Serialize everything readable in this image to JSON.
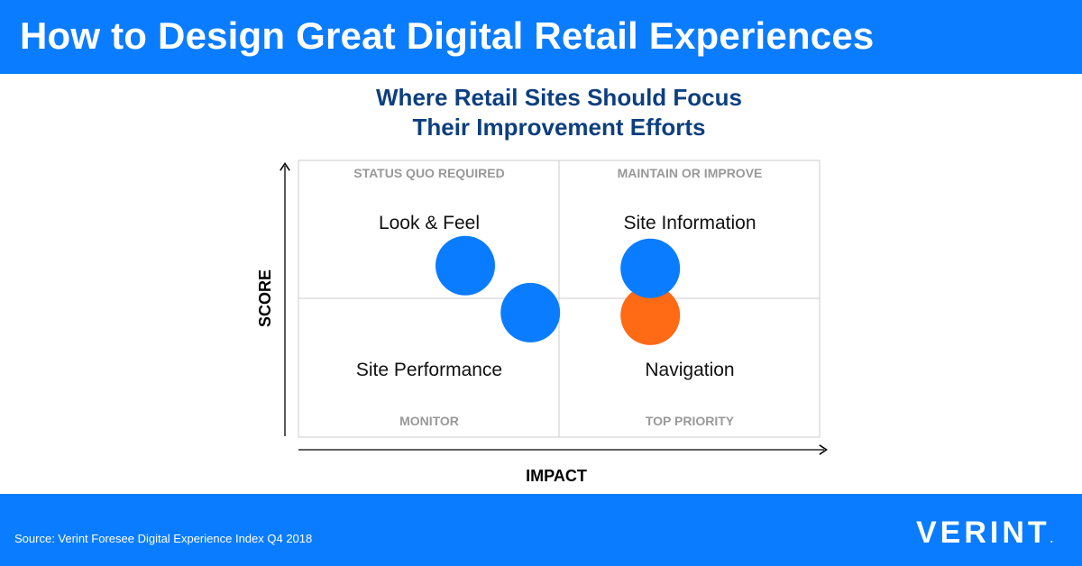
{
  "header": {
    "title": "How to Design Great Digital Retail Experiences"
  },
  "chart": {
    "title_line1": "Where Retail Sites Should Focus",
    "title_line2": "Their Improvement Efforts"
  },
  "footer": {
    "source": "Source: Verint Foresee Digital Experience Index Q4 2018",
    "logo": "VERINT",
    "logo_mark": "."
  },
  "colors": {
    "brand_blue": "#0a7cff",
    "title_navy": "#0d3f7f",
    "highlight_orange": "#ff6a14",
    "quadrant_label_gray": "#999999",
    "grid_gray": "#cccccc"
  },
  "chart_data": {
    "type": "scatter",
    "xlabel": "IMPACT",
    "ylabel": "SCORE",
    "xlim": [
      0,
      1
    ],
    "ylim": [
      0,
      1
    ],
    "quadrant_labels": {
      "top_left": "STATUS QUO REQUIRED",
      "top_right": "MAINTAIN OR IMPROVE",
      "bottom_left": "MONITOR",
      "bottom_right": "TOP PRIORITY"
    },
    "points": [
      {
        "label": "Look & Feel",
        "x": 0.32,
        "y": 0.62,
        "color": "#0a7cff"
      },
      {
        "label": "Site Performance",
        "x": 0.445,
        "y": 0.45,
        "color": "#0a7cff"
      },
      {
        "label": "Navigation",
        "x": 0.675,
        "y": 0.44,
        "color": "#ff6a14"
      },
      {
        "label": "Site Information",
        "x": 0.675,
        "y": 0.61,
        "color": "#0a7cff"
      }
    ],
    "category_labels": {
      "top_left": "Look & Feel",
      "top_right": "Site Information",
      "bottom_left": "Site Performance",
      "bottom_right": "Navigation"
    }
  }
}
